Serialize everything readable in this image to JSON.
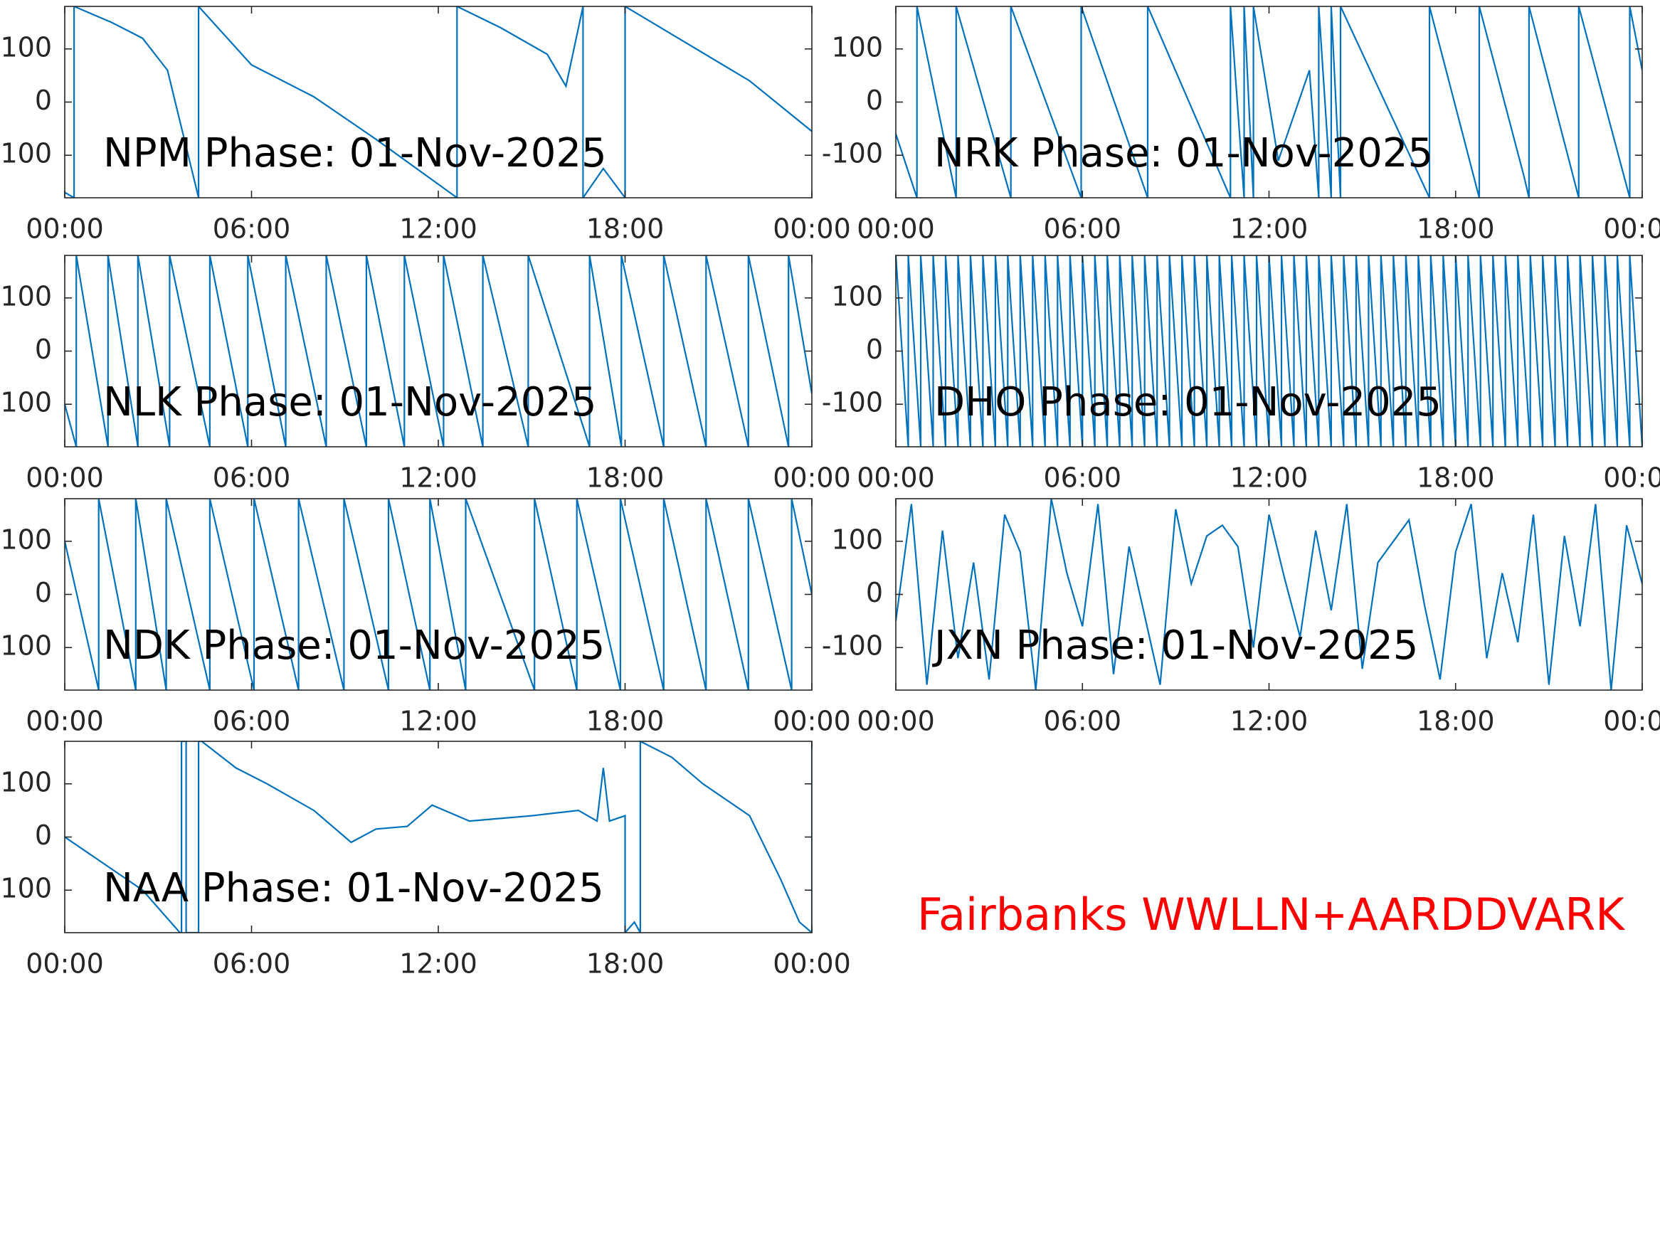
{
  "chart_data": [
    {
      "type": "line",
      "title": "NPM Phase: 01-Nov-2025",
      "x": [
        0,
        0.3,
        0.3,
        1.5,
        2.5,
        3.3,
        4.3,
        4.3,
        6,
        8,
        10,
        12.6,
        12.6,
        14,
        15.5,
        16.1,
        16.65,
        16.65,
        17.3,
        18.0,
        18.0,
        20,
        22,
        24
      ],
      "values": [
        -170,
        -180,
        180,
        150,
        120,
        60,
        -180,
        180,
        70,
        10,
        -70,
        -180,
        180,
        140,
        90,
        30,
        180,
        -180,
        -125,
        -180,
        180,
        110,
        40,
        -55
      ],
      "color": "#0072bd",
      "xlim": [
        0,
        24
      ],
      "ylim": [
        -180,
        180
      ],
      "xticks": [
        {
          "value": 0,
          "label": "00:00"
        },
        {
          "value": 6,
          "label": "06:00"
        },
        {
          "value": 12,
          "label": "12:00"
        },
        {
          "value": 18,
          "label": "18:00"
        },
        {
          "value": 24,
          "label": "00:00"
        }
      ],
      "yticks": [
        -100,
        0,
        100
      ]
    },
    {
      "type": "line",
      "title": "NRK Phase: 01-Nov-2025",
      "x": [
        0,
        0.68,
        0.68,
        1.94,
        1.94,
        3.7,
        3.7,
        5.96,
        5.96,
        8.1,
        8.1,
        10.76,
        10.76,
        11.2,
        11.2,
        11.5,
        11.5,
        12.3,
        13.3,
        13.6,
        13.6,
        14.0,
        14.0,
        14.3,
        14.3,
        17.16,
        17.16,
        18.76,
        18.76,
        20.2,
        20.36,
        20.36,
        21.96,
        21.96,
        23.6,
        23.6,
        24
      ],
      "values": [
        -60,
        -180,
        180,
        -180,
        180,
        -180,
        180,
        -180,
        180,
        -180,
        180,
        -180,
        180,
        -180,
        180,
        -180,
        180,
        -110,
        60,
        -180,
        180,
        -180,
        180,
        -180,
        180,
        -180,
        180,
        -180,
        180,
        -140,
        -180,
        180,
        -180,
        180,
        -180,
        180,
        60
      ],
      "color": "#0072bd",
      "xlim": [
        0,
        24
      ],
      "ylim": [
        -180,
        180
      ],
      "xticks": [
        {
          "value": 0,
          "label": "00:00"
        },
        {
          "value": 6,
          "label": "06:00"
        },
        {
          "value": 12,
          "label": "12:00"
        },
        {
          "value": 18,
          "label": "18:00"
        },
        {
          "value": 24,
          "label": "00:00"
        }
      ],
      "yticks": [
        -100,
        0,
        100
      ]
    },
    {
      "type": "line",
      "title": "NLK Phase: 01-Nov-2025",
      "x": [
        0,
        0.37,
        0.37,
        1.39,
        1.39,
        2.35,
        2.35,
        3.37,
        3.37,
        4.66,
        4.66,
        5.88,
        5.88,
        7.1,
        7.1,
        8.4,
        8.4,
        9.69,
        9.69,
        10.91,
        10.91,
        12.17,
        12.17,
        13.43,
        13.43,
        14.89,
        14.89,
        16.86,
        16.86,
        17.88,
        17.88,
        19.24,
        19.24,
        20.6,
        20.6,
        21.96,
        21.96,
        23.25,
        23.25,
        24
      ],
      "values": [
        -100,
        -180,
        180,
        -180,
        180,
        -180,
        180,
        -180,
        180,
        -180,
        180,
        -180,
        180,
        -180,
        180,
        -180,
        180,
        -180,
        180,
        -180,
        180,
        -180,
        180,
        -180,
        180,
        -180,
        180,
        -180,
        180,
        -180,
        180,
        -180,
        180,
        -180,
        180,
        -180,
        180,
        -180,
        180,
        -80
      ],
      "color": "#0072bd",
      "xlim": [
        0,
        24
      ],
      "ylim": [
        -180,
        180
      ],
      "xticks": [
        {
          "value": 0,
          "label": "00:00"
        },
        {
          "value": 6,
          "label": "06:00"
        },
        {
          "value": 12,
          "label": "12:00"
        },
        {
          "value": 18,
          "label": "18:00"
        },
        {
          "value": 24,
          "label": "00:00"
        }
      ],
      "yticks": [
        -100,
        0,
        100
      ]
    },
    {
      "type": "line",
      "title": "DHO Phase: 01-Nov-2025",
      "x": [
        0,
        0.4,
        0.4,
        0.8,
        0.8,
        1.2,
        1.2,
        1.6,
        1.6,
        2,
        2,
        2.4,
        2.4,
        2.8,
        2.8,
        3.2,
        3.2,
        3.6,
        3.6,
        4,
        4,
        4.4,
        4.4,
        4.8,
        4.8,
        5.2,
        5.2,
        5.6,
        5.6,
        6,
        6,
        6.4,
        6.4,
        6.8,
        6.8,
        7.2,
        7.2,
        7.6,
        7.6,
        8,
        8,
        8.4,
        8.4,
        8.8,
        8.8,
        9.2,
        9.2,
        9.6,
        9.6,
        10,
        10,
        10.4,
        10.4,
        10.8,
        10.8,
        11.2,
        11.2,
        11.6,
        11.6,
        12,
        12,
        12.4,
        12.4,
        12.8,
        12.8,
        13.2,
        13.2,
        13.6,
        13.6,
        14,
        14,
        14.4,
        14.4,
        14.8,
        14.8,
        15.2,
        15.2,
        15.6,
        15.6,
        16,
        16,
        16.4,
        16.4,
        16.8,
        16.8,
        17.2,
        17.2,
        17.6,
        17.6,
        18,
        18,
        18.4,
        18.4,
        18.8,
        18.8,
        19.2,
        19.2,
        19.6,
        19.6,
        20,
        20,
        20.4,
        20.4,
        20.8,
        20.8,
        21.2,
        21.2,
        21.6,
        21.6,
        22,
        22,
        22.4,
        22.4,
        22.8,
        22.8,
        23.2,
        23.2,
        23.6,
        23.6,
        24
      ],
      "values": [
        180,
        -180,
        180,
        -180,
        180,
        -180,
        180,
        -180,
        180,
        -180,
        180,
        -180,
        180,
        -180,
        180,
        -180,
        180,
        -180,
        180,
        -180,
        180,
        -180,
        180,
        -180,
        180,
        -180,
        180,
        -180,
        180,
        -180,
        180,
        -180,
        180,
        -180,
        180,
        -180,
        180,
        -180,
        180,
        -180,
        180,
        -180,
        180,
        -180,
        180,
        -180,
        180,
        -180,
        180,
        -180,
        180,
        -180,
        180,
        -180,
        180,
        -180,
        180,
        -180,
        180,
        -180,
        180,
        -180,
        180,
        -180,
        180,
        -180,
        180,
        -180,
        180,
        -180,
        180,
        -180,
        180,
        -180,
        180,
        -180,
        180,
        -180,
        180,
        -180,
        180,
        -180,
        180,
        -180,
        180,
        -180,
        180,
        -180,
        180,
        -180,
        180,
        -180,
        180,
        -180,
        180,
        -180,
        180,
        -180,
        180,
        -180,
        180,
        -180,
        180,
        -180,
        180,
        -180,
        180,
        -180,
        180,
        -180,
        180,
        -180,
        180,
        -180,
        180,
        -180,
        180,
        -180,
        180,
        -180
      ],
      "color": "#0072bd",
      "xlim": [
        0,
        24
      ],
      "ylim": [
        -180,
        180
      ],
      "xticks": [
        {
          "value": 0,
          "label": "00:00"
        },
        {
          "value": 6,
          "label": "06:00"
        },
        {
          "value": 12,
          "label": "12:00"
        },
        {
          "value": 18,
          "label": "18:00"
        },
        {
          "value": 24,
          "label": "00:00"
        }
      ],
      "yticks": [
        -100,
        0,
        100
      ]
    },
    {
      "type": "line",
      "title": "NDK Phase: 01-Nov-2025",
      "x": [
        0,
        1.09,
        1.09,
        2.28,
        2.28,
        3.26,
        3.26,
        4.66,
        4.66,
        6.08,
        6.08,
        7.51,
        7.51,
        8.97,
        8.97,
        10.4,
        10.4,
        11.73,
        11.73,
        12.88,
        12.88,
        15.09,
        15.09,
        16.45,
        16.45,
        17.85,
        17.85,
        19.24,
        19.24,
        20.6,
        20.6,
        21.96,
        21.96,
        23.35,
        23.35,
        24
      ],
      "values": [
        100,
        -180,
        180,
        -180,
        180,
        -180,
        180,
        -180,
        180,
        -180,
        180,
        -180,
        180,
        -180,
        180,
        -180,
        180,
        -180,
        180,
        -180,
        180,
        -180,
        180,
        -180,
        180,
        -180,
        180,
        -180,
        180,
        -180,
        180,
        -180,
        180,
        -180,
        180,
        0
      ],
      "color": "#0072bd",
      "xlim": [
        0,
        24
      ],
      "ylim": [
        -180,
        180
      ],
      "xticks": [
        {
          "value": 0,
          "label": "00:00"
        },
        {
          "value": 6,
          "label": "06:00"
        },
        {
          "value": 12,
          "label": "12:00"
        },
        {
          "value": 18,
          "label": "18:00"
        },
        {
          "value": 24,
          "label": "00:00"
        }
      ],
      "yticks": [
        -100,
        0,
        100
      ]
    },
    {
      "type": "line",
      "title": "JXN Phase: 01-Nov-2025",
      "x": [
        0,
        0.5,
        1,
        1.5,
        2,
        2.5,
        3,
        3.5,
        4,
        4.5,
        5,
        5.5,
        6,
        6.5,
        7,
        7.5,
        8,
        8.5,
        9,
        9.5,
        10,
        10.5,
        11,
        11.5,
        12,
        12.5,
        13,
        13.5,
        14,
        14.5,
        15,
        15.5,
        16,
        16.5,
        17,
        17.5,
        18,
        18.5,
        19,
        19.5,
        20,
        20.5,
        21,
        21.5,
        22,
        22.5,
        23,
        23.5,
        24
      ],
      "values": [
        -50,
        170,
        -170,
        120,
        -120,
        60,
        -160,
        150,
        80,
        -180,
        180,
        40,
        -60,
        170,
        -150,
        90,
        -40,
        -170,
        160,
        20,
        110,
        130,
        90,
        -100,
        150,
        30,
        -80,
        120,
        -30,
        170,
        -140,
        60,
        100,
        140,
        -20,
        -160,
        80,
        170,
        -120,
        40,
        -90,
        150,
        -170,
        110,
        -60,
        170,
        -180,
        130,
        20
      ],
      "color": "#0072bd",
      "xlim": [
        0,
        24
      ],
      "ylim": [
        -180,
        180
      ],
      "xticks": [
        {
          "value": 0,
          "label": "00:00"
        },
        {
          "value": 6,
          "label": "06:00"
        },
        {
          "value": 12,
          "label": "12:00"
        },
        {
          "value": 18,
          "label": "18:00"
        },
        {
          "value": 24,
          "label": "00:00"
        }
      ],
      "yticks": [
        -100,
        0,
        100
      ]
    },
    {
      "type": "line",
      "title": "NAA Phase: 01-Nov-2025",
      "x": [
        0,
        1,
        2.5,
        3.7,
        3.75,
        3.75,
        3.9,
        3.9,
        4.3,
        4.3,
        4.4,
        5.5,
        6.5,
        8,
        9.2,
        10,
        11,
        11.8,
        13,
        15,
        16.5,
        17.1,
        17.3,
        17.5,
        18.0,
        18.0,
        18.3,
        18.49,
        18.49,
        19.5,
        20.5,
        21,
        22,
        23,
        23.6,
        24,
        24
      ],
      "values": [
        0,
        -40,
        -100,
        -180,
        -180,
        180,
        180,
        -180,
        -180,
        180,
        180,
        130,
        100,
        50,
        -10,
        15,
        20,
        60,
        30,
        40,
        50,
        30,
        130,
        30,
        40,
        -180,
        -160,
        -180,
        180,
        150,
        100,
        80,
        40,
        -80,
        -160,
        -180,
        180
      ],
      "color": "#0072bd",
      "xlim": [
        0,
        24
      ],
      "ylim": [
        -180,
        180
      ],
      "xticks": [
        {
          "value": 0,
          "label": "00:00"
        },
        {
          "value": 6,
          "label": "06:00"
        },
        {
          "value": 12,
          "label": "12:00"
        },
        {
          "value": 18,
          "label": "18:00"
        },
        {
          "value": 24,
          "label": "00:00"
        }
      ],
      "yticks": [
        -100,
        0,
        100
      ]
    }
  ],
  "footer": "Fairbanks WWLLN+AARDDVARK"
}
